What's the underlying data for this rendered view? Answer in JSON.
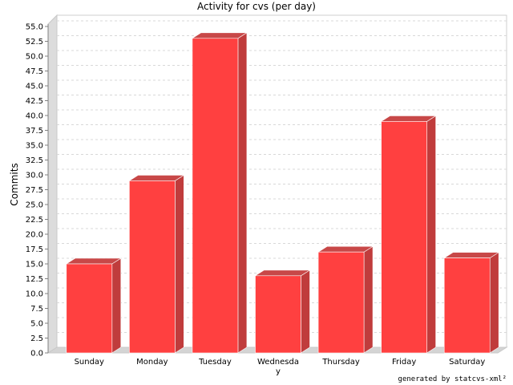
{
  "chart_data": {
    "type": "bar",
    "title": "Activity for cvs (per day)",
    "ylabel": "Commits",
    "xlabel": "",
    "categories": [
      "Sunday",
      "Monday",
      "Tuesday",
      "Wednesday",
      "Thursday",
      "Friday",
      "Saturday"
    ],
    "values": [
      15,
      29,
      53,
      13,
      17,
      39,
      16
    ],
    "ylim": [
      0,
      55
    ],
    "ytick_step": 2.5,
    "grid": true,
    "bar_color": "#ff4040",
    "bar_side_color": "#c03c3c",
    "bar_top_color": "#c84848"
  },
  "footer": "generated by statcvs-xml²"
}
